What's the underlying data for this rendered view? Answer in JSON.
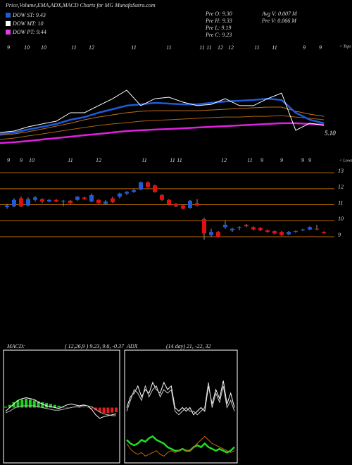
{
  "title": "Price,Volume,EMA,ADX,MACD Charts for MG MunafaSutra.com",
  "legend": [
    {
      "name": "DOW ST: 9.43",
      "color": "#1e5bd8"
    },
    {
      "name": "DOW MT: 10",
      "color": "#ffffff"
    },
    {
      "name": "DOW PT: 9.44",
      "color": "#e040e0"
    }
  ],
  "info_left": [
    "Pre  O: 9.30",
    "Pre  H: 9.33",
    "Pre  L: 9.19",
    "Pre  C: 9.23"
  ],
  "info_right": [
    "Avg V: 0.007 M",
    "Pre  V: 0.066  M"
  ],
  "chart_data": [
    {
      "type": "line",
      "ylim": [
        3,
        13
      ],
      "last_label": "5.10",
      "tops_marker": "< Tops",
      "lows_marker": "< Lows",
      "tops_labels": [
        "9",
        "10",
        "10",
        "11",
        "12",
        "11",
        "11",
        "11",
        "11",
        "12",
        "12",
        "11",
        "11",
        "9",
        "9"
      ],
      "lows_labels": [
        "9",
        "9",
        "10",
        "11",
        "12",
        "11",
        "11",
        "11",
        "12",
        "11",
        "9",
        "9",
        "9",
        "9"
      ],
      "series": [
        {
          "name": "Magenta",
          "color": "#e020e0",
          "width": 2.5,
          "values": [
            4.59,
            4.65,
            4.76,
            4.88,
            5.0,
            5.12,
            5.24,
            5.35,
            5.47,
            5.59,
            5.65,
            5.71,
            5.76,
            5.82,
            5.88,
            5.94,
            6.0,
            6.06,
            6.12,
            6.18,
            6.24,
            6.24,
            6.18,
            6.12
          ]
        },
        {
          "name": "Orange lower",
          "color": "#b06010",
          "width": 1,
          "values": [
            4.88,
            5.0,
            5.18,
            5.35,
            5.53,
            5.71,
            5.88,
            6.06,
            6.18,
            6.29,
            6.41,
            6.47,
            6.53,
            6.59,
            6.65,
            6.71,
            6.76,
            6.76,
            6.82,
            6.82,
            6.88,
            6.76,
            6.65,
            6.53
          ]
        },
        {
          "name": "Orange upper",
          "color": "#c07018",
          "width": 1,
          "values": [
            5.24,
            5.35,
            5.53,
            5.76,
            6.0,
            6.24,
            6.53,
            6.76,
            6.94,
            7.12,
            7.24,
            7.29,
            7.29,
            7.29,
            7.29,
            7.35,
            7.41,
            7.47,
            7.53,
            7.59,
            7.59,
            7.24,
            7.0,
            6.82
          ]
        },
        {
          "name": "Blue",
          "color": "#1e5bd8",
          "width": 2.5,
          "values": [
            5.35,
            5.47,
            5.71,
            5.94,
            6.18,
            6.53,
            6.76,
            7.12,
            7.41,
            7.71,
            7.82,
            7.94,
            7.88,
            7.82,
            7.82,
            7.94,
            8.06,
            8.12,
            8.18,
            8.29,
            8.18,
            7.12,
            6.53,
            6.24
          ]
        },
        {
          "name": "Price",
          "color": "#ffffff",
          "width": 1,
          "values": [
            5.47,
            5.59,
            5.94,
            6.18,
            6.41,
            7.12,
            7.12,
            7.71,
            8.29,
            9.0,
            7.71,
            8.29,
            8.41,
            8.0,
            7.71,
            7.82,
            8.29,
            7.71,
            7.71,
            8.29,
            8.76,
            5.65,
            6.24,
            6.06
          ]
        }
      ]
    },
    {
      "type": "candlestick",
      "up_color": "#1e5bd8",
      "down_color": "#e01010",
      "grid_color": "#b86a00",
      "ylim": [
        7.9,
        13.4
      ],
      "yticks": [
        9,
        10,
        11,
        12,
        13
      ],
      "open": [
        10.85,
        10.9,
        11.4,
        10.95,
        11.3,
        11.35,
        11.2,
        11.3,
        11.2,
        11.25,
        11.3,
        11.45,
        11.2,
        11.3,
        11.05,
        11.4,
        11.5,
        11.7,
        11.8,
        11.95,
        12.4,
        12.2,
        11.6,
        11.3,
        11.05,
        10.95,
        10.8,
        11.1,
        10.1,
        9.1,
        9.3,
        9.6,
        9.4,
        9.55,
        9.75,
        9.6,
        9.55,
        9.4,
        9.35,
        9.3,
        9.15,
        9.3,
        9.4,
        9.45,
        9.5,
        9.3
      ],
      "close": [
        10.95,
        11.3,
        10.9,
        11.35,
        11.45,
        11.2,
        11.3,
        11.2,
        11.25,
        11.1,
        11.5,
        11.35,
        11.6,
        11.1,
        11.2,
        11.15,
        11.7,
        11.8,
        11.9,
        12.4,
        12.1,
        11.8,
        11.3,
        11.0,
        10.9,
        10.75,
        11.25,
        10.95,
        9.2,
        9.3,
        9.0,
        9.75,
        9.5,
        9.6,
        9.65,
        9.45,
        9.4,
        9.3,
        9.2,
        9.1,
        9.3,
        9.35,
        9.45,
        9.6,
        9.45,
        9.23
      ],
      "high": [
        11.05,
        11.4,
        11.5,
        11.45,
        11.55,
        11.4,
        11.35,
        11.35,
        11.3,
        11.3,
        11.55,
        11.5,
        11.7,
        11.35,
        11.3,
        11.5,
        11.75,
        11.85,
        12.0,
        12.45,
        12.45,
        12.25,
        11.65,
        11.35,
        11.1,
        11.0,
        11.3,
        11.35,
        10.2,
        9.5,
        9.35,
        10.0,
        9.55,
        9.65,
        9.8,
        9.65,
        9.6,
        9.45,
        9.4,
        9.35,
        9.35,
        9.4,
        9.5,
        9.65,
        9.75,
        9.33
      ],
      "low": [
        10.75,
        10.85,
        10.85,
        10.9,
        11.2,
        11.1,
        11.15,
        11.15,
        10.9,
        11.05,
        11.25,
        11.3,
        11.15,
        11.05,
        11.0,
        11.1,
        11.4,
        11.6,
        11.75,
        11.9,
        12.05,
        11.75,
        11.25,
        10.95,
        10.85,
        10.7,
        10.75,
        10.9,
        8.8,
        9.0,
        8.95,
        9.5,
        9.3,
        9.4,
        9.6,
        9.4,
        9.35,
        9.25,
        9.15,
        9.05,
        9.1,
        9.25,
        9.35,
        9.4,
        9.4,
        9.19
      ]
    },
    {
      "type": "macd",
      "label": "MACD:",
      "params": "( 12,26,9 ) 9.23,  9.6,  -0.37",
      "ylim": [
        -3,
        3
      ],
      "pos_color": "#22cc22",
      "neg_color": "#e02020",
      "histogram": [
        0.05,
        0.15,
        0.3,
        0.4,
        0.45,
        0.5,
        0.45,
        0.4,
        0.35,
        0.3,
        0.25,
        0.2,
        0.15,
        0.1,
        0.05,
        0.02,
        0.0,
        -0.02,
        0.02,
        0.01,
        -0.02,
        -0.05,
        -0.15,
        -0.25,
        -0.3,
        -0.3,
        -0.28,
        -0.25
      ],
      "series": [
        {
          "name": "MACD",
          "color": "#ffffff",
          "values": [
            -0.2,
            0,
            0.2,
            0.4,
            0.5,
            0.55,
            0.5,
            0.45,
            0.3,
            0.2,
            0.1,
            0.05,
            0.0,
            -0.05,
            0.05,
            0.15,
            0.2,
            0.15,
            0.1,
            0.15,
            0.1,
            -0.1,
            -0.4,
            -0.6,
            -0.5,
            -0.45,
            -0.4,
            -0.35
          ]
        },
        {
          "name": "Signal",
          "color": "#bbbbbb",
          "values": [
            -0.3,
            -0.2,
            -0.05,
            0.05,
            0.1,
            0.1,
            0.1,
            0.1,
            0.05,
            0.0,
            -0.05,
            -0.1,
            -0.15,
            -0.15,
            -0.1,
            -0.05,
            0.0,
            0.05,
            0.05,
            0.1,
            0.1,
            0.05,
            -0.1,
            -0.25,
            -0.35,
            -0.4,
            -0.45,
            -0.45
          ]
        }
      ]
    },
    {
      "type": "adx",
      "label": "ADX",
      "params": "(14  day) 21,  -22,  32",
      "ylim": [
        0,
        60
      ],
      "series": [
        {
          "name": "+DI",
          "color": "#ffffff",
          "width": 1,
          "values": [
            30,
            36,
            38,
            42,
            36,
            40,
            38,
            44,
            40,
            38,
            44,
            40,
            42,
            30,
            28,
            30,
            28,
            30,
            26,
            28,
            30,
            28,
            42,
            32,
            40,
            35,
            45,
            32,
            38,
            30
          ]
        },
        {
          "name": "-DI",
          "color": "#cccccc",
          "width": 1,
          "values": [
            28,
            34,
            40,
            38,
            34,
            42,
            36,
            40,
            42,
            36,
            40,
            38,
            40,
            28,
            26,
            28,
            30,
            28,
            28,
            26,
            28,
            30,
            44,
            30,
            38,
            33,
            42,
            30,
            34,
            28
          ]
        },
        {
          "name": "ADX",
          "color": "#22dd22",
          "width": 2.5,
          "values": [
            12,
            10,
            9,
            10,
            12,
            11,
            13,
            14,
            12,
            11,
            10,
            8,
            7,
            6,
            6,
            7,
            6,
            6,
            8,
            9,
            8,
            10,
            8,
            7,
            6,
            7,
            6,
            5,
            6,
            8
          ]
        },
        {
          "name": "Other",
          "color": "#c06a10",
          "width": 1,
          "values": [
            10,
            7,
            5,
            4,
            5,
            3,
            4,
            5,
            6,
            4,
            3,
            5,
            6,
            5,
            6,
            7,
            6,
            6,
            8,
            10,
            12,
            14,
            12,
            10,
            9,
            8,
            7,
            6,
            5,
            6
          ]
        }
      ]
    }
  ]
}
